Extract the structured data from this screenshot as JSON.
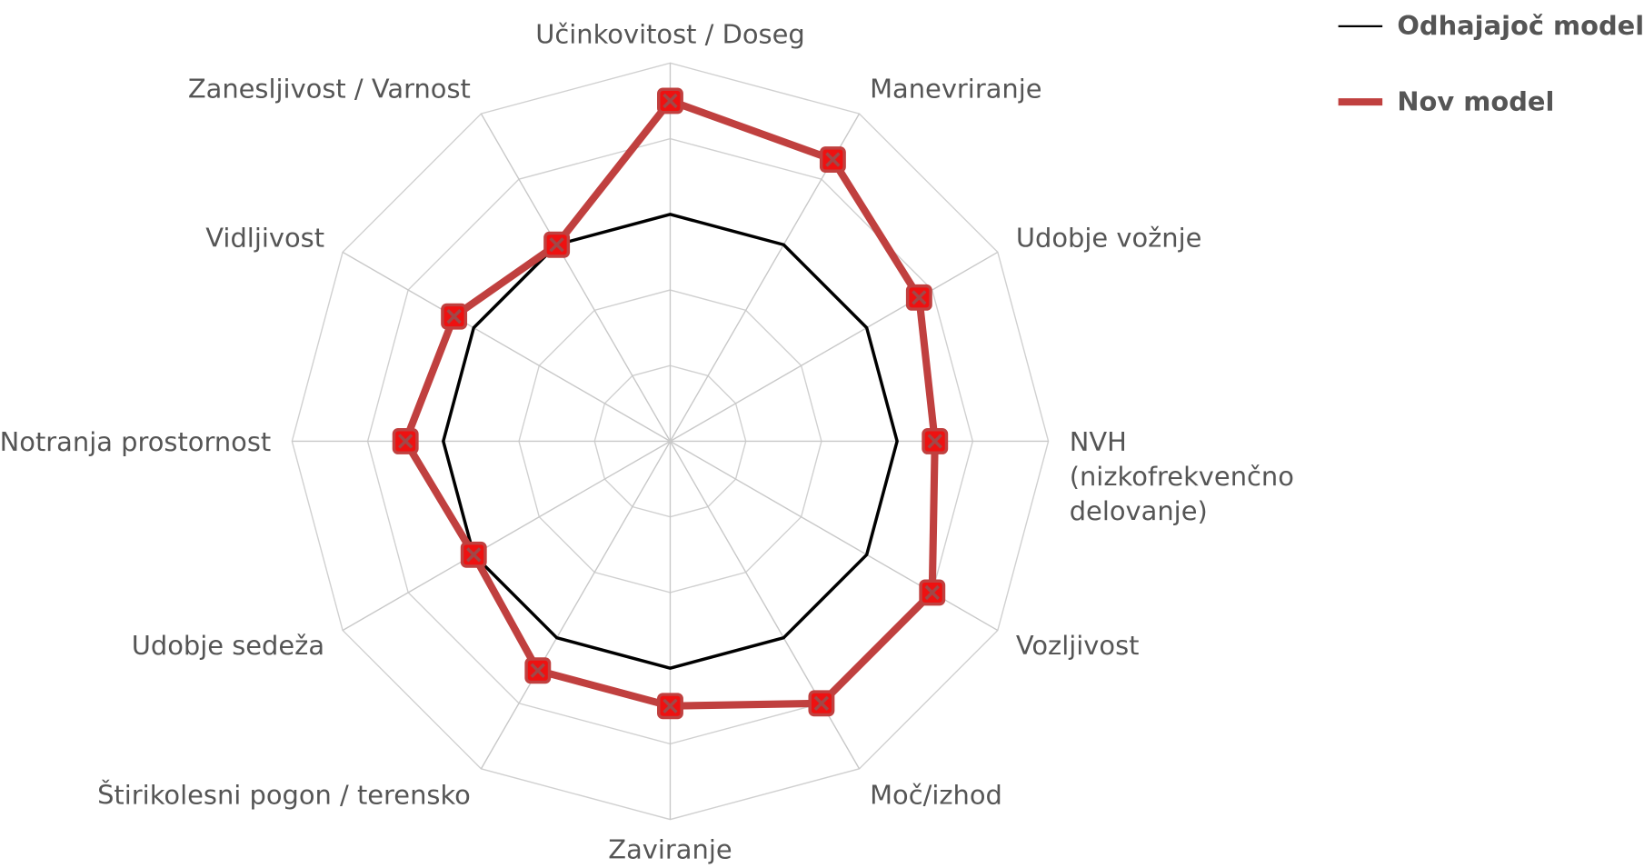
{
  "chart_data": {
    "type": "radar",
    "categories": [
      "Učinkovitost / Doseg",
      "Manevriranje",
      "Udobje vožnje",
      "NVH (nizkofrekvenčno delovanje)",
      "Vozljivost",
      "Moč/izhod",
      "Zaviranje",
      "Štirikolesni pogon / terensko",
      "Udobje sedeža",
      "Notranja prostornost",
      "Vidljivost",
      "Zanesljivost / Varnost"
    ],
    "series": [
      {
        "name": "Odhajajoč model",
        "color": "#000000",
        "values": [
          3,
          3,
          3,
          3,
          3,
          3,
          3,
          3,
          3,
          3,
          3,
          3
        ]
      },
      {
        "name": "Nov model",
        "color": "#c0403f",
        "values": [
          4.5,
          4.3,
          3.8,
          3.5,
          4.0,
          4.0,
          3.5,
          3.5,
          3.0,
          3.5,
          3.3,
          3.0
        ]
      }
    ],
    "rlim": [
      0,
      5
    ],
    "rticks": [
      1,
      2,
      3,
      4,
      5
    ],
    "grid": true,
    "legend": "top-right"
  }
}
